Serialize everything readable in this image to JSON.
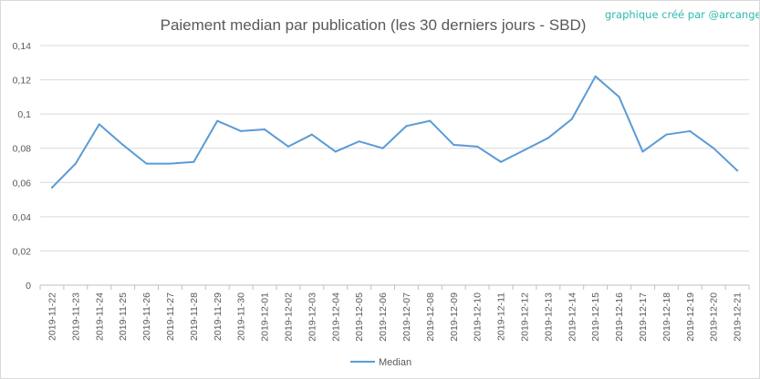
{
  "credit": "graphique créé par @arcange",
  "chart_data": {
    "type": "line",
    "title": "Paiement median par publication (les 30 derniers jours - SBD)",
    "xlabel": "",
    "ylabel": "",
    "ylim": [
      0,
      0.14
    ],
    "yticks": [
      "0",
      "0,02",
      "0,04",
      "0,06",
      "0,08",
      "0,1",
      "0,12",
      "0,14"
    ],
    "grid": true,
    "legend": "bottom",
    "categories": [
      "2019-11-22",
      "2019-11-23",
      "2019-11-24",
      "2019-11-25",
      "2019-11-26",
      "2019-11-27",
      "2019-11-28",
      "2019-11-29",
      "2019-11-30",
      "2019-12-01",
      "2019-12-02",
      "2019-12-03",
      "2019-12-04",
      "2019-12-05",
      "2019-12-06",
      "2019-12-07",
      "2019-12-08",
      "2019-12-09",
      "2019-12-10",
      "2019-12-11",
      "2019-12-12",
      "2019-12-13",
      "2019-12-14",
      "2019-12-15",
      "2019-12-16",
      "2019-12-17",
      "2019-12-18",
      "2019-12-19",
      "2019-12-20",
      "2019-12-21"
    ],
    "series": [
      {
        "name": "Median",
        "color": "#5b9bd5",
        "values": [
          0.057,
          0.071,
          0.094,
          0.082,
          0.071,
          0.071,
          0.072,
          0.096,
          0.09,
          0.091,
          0.081,
          0.088,
          0.078,
          0.084,
          0.08,
          0.093,
          0.096,
          0.082,
          0.081,
          0.072,
          0.079,
          0.086,
          0.097,
          0.122,
          0.11,
          0.078,
          0.088,
          0.09,
          0.08,
          0.067
        ]
      }
    ]
  }
}
